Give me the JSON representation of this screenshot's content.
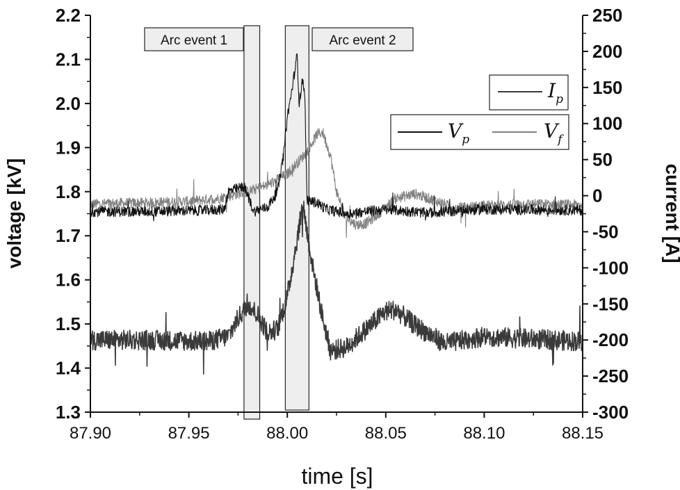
{
  "chart_data": {
    "type": "line",
    "xlabel": "time [s]",
    "ylabel_left": "voltage [kV]",
    "ylabel_right": "current [A]",
    "xlim": [
      87.9,
      88.15
    ],
    "ylim_left": [
      1.3,
      2.2
    ],
    "ylim_right": [
      -300,
      250
    ],
    "x_ticks": [
      "87.90",
      "87.95",
      "88.00",
      "88.05",
      "88.10",
      "88.15"
    ],
    "y_left_ticks": [
      "2.2",
      "2.1",
      "2.0",
      "1.9",
      "1.8",
      "1.7",
      "1.6",
      "1.5",
      "1.4",
      "1.3"
    ],
    "y_right_ticks": [
      "250",
      "200",
      "150",
      "100",
      "50",
      "0",
      "-50",
      "-100",
      "-150",
      "-200",
      "-250",
      "-300"
    ],
    "grid": false,
    "legend": [
      {
        "symbol": "I",
        "subscript": "p",
        "placement": "upper-right"
      },
      {
        "symbol": "V",
        "subscript": "p",
        "placement": "right"
      },
      {
        "symbol": "V",
        "subscript": "f",
        "placement": "right"
      }
    ],
    "annotations": [
      {
        "text": "Arc event 1",
        "x_range": [
          87.978,
          87.986
        ]
      },
      {
        "text": "Arc event 2",
        "x_range": [
          87.999,
          88.011
        ]
      }
    ],
    "series": [
      {
        "symbol": "V",
        "subscript": "p",
        "axis": "left",
        "color": "#111111",
        "points": [
          [
            87.9,
            1.755
          ],
          [
            87.93,
            1.755
          ],
          [
            87.96,
            1.758
          ],
          [
            87.968,
            1.76
          ],
          [
            87.97,
            1.8
          ],
          [
            87.978,
            1.812
          ],
          [
            87.98,
            1.79
          ],
          [
            87.983,
            1.755
          ],
          [
            87.99,
            1.765
          ],
          [
            87.995,
            1.8
          ],
          [
            87.998,
            1.88
          ],
          [
            88.0,
            1.97
          ],
          [
            88.002,
            2.02
          ],
          [
            88.004,
            2.08
          ],
          [
            88.005,
            2.11
          ],
          [
            88.006,
            2.0
          ],
          [
            88.008,
            2.06
          ],
          [
            88.009,
            2.0
          ],
          [
            88.01,
            1.78
          ],
          [
            88.015,
            1.775
          ],
          [
            88.02,
            1.76
          ],
          [
            88.03,
            1.75
          ],
          [
            88.05,
            1.76
          ],
          [
            88.07,
            1.752
          ],
          [
            88.1,
            1.76
          ],
          [
            88.15,
            1.758
          ]
        ]
      },
      {
        "symbol": "V",
        "subscript": "f",
        "axis": "left",
        "color": "#808080",
        "points": [
          [
            87.9,
            1.772
          ],
          [
            87.93,
            1.775
          ],
          [
            87.95,
            1.778
          ],
          [
            87.965,
            1.785
          ],
          [
            87.98,
            1.8
          ],
          [
            87.99,
            1.815
          ],
          [
            88.0,
            1.84
          ],
          [
            88.005,
            1.865
          ],
          [
            88.01,
            1.89
          ],
          [
            88.015,
            1.93
          ],
          [
            88.018,
            1.935
          ],
          [
            88.022,
            1.88
          ],
          [
            88.025,
            1.8
          ],
          [
            88.03,
            1.74
          ],
          [
            88.035,
            1.725
          ],
          [
            88.04,
            1.728
          ],
          [
            88.045,
            1.745
          ],
          [
            88.055,
            1.785
          ],
          [
            88.065,
            1.795
          ],
          [
            88.075,
            1.78
          ],
          [
            88.085,
            1.762
          ],
          [
            88.1,
            1.768
          ],
          [
            88.12,
            1.772
          ],
          [
            88.15,
            1.77
          ]
        ]
      },
      {
        "symbol": "I",
        "subscript": "p",
        "axis": "right",
        "color": "#3a3a3a",
        "points": [
          [
            87.9,
            -200
          ],
          [
            87.93,
            -200
          ],
          [
            87.96,
            -202
          ],
          [
            87.97,
            -195
          ],
          [
            87.975,
            -170
          ],
          [
            87.98,
            -150
          ],
          [
            87.985,
            -165
          ],
          [
            87.99,
            -190
          ],
          [
            87.995,
            -185
          ],
          [
            88.0,
            -140
          ],
          [
            88.005,
            -60
          ],
          [
            88.008,
            -10
          ],
          [
            88.01,
            -50
          ],
          [
            88.013,
            -100
          ],
          [
            88.018,
            -170
          ],
          [
            88.022,
            -215
          ],
          [
            88.03,
            -210
          ],
          [
            88.04,
            -185
          ],
          [
            88.05,
            -160
          ],
          [
            88.055,
            -158
          ],
          [
            88.065,
            -180
          ],
          [
            88.08,
            -205
          ],
          [
            88.1,
            -195
          ],
          [
            88.12,
            -198
          ],
          [
            88.15,
            -202
          ]
        ]
      }
    ]
  }
}
